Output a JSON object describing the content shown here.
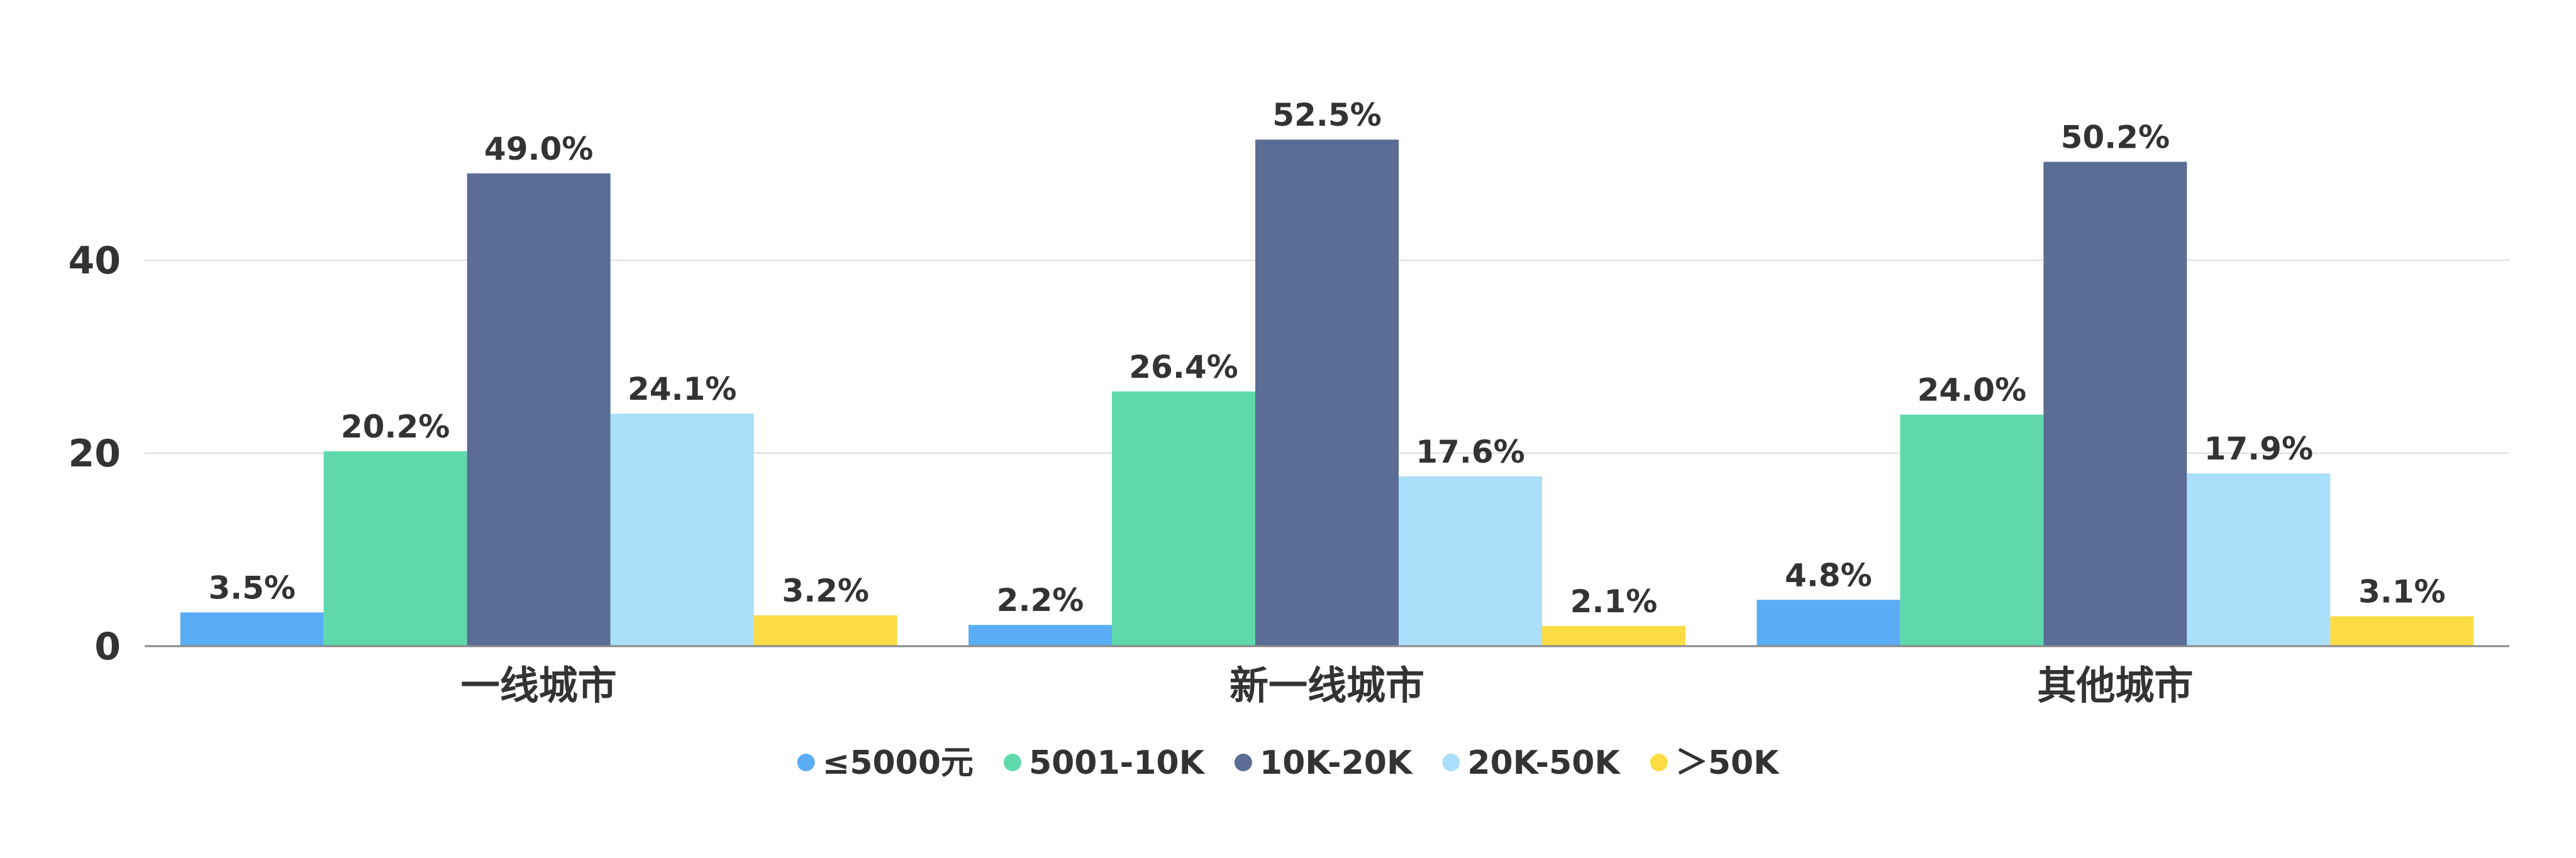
{
  "chart_data": {
    "type": "bar",
    "categories": [
      "一线城市",
      "新一线城市",
      "其他城市"
    ],
    "series": [
      {
        "name": "≤5000元",
        "color": "#5AADF5",
        "values": [
          3.5,
          2.2,
          4.8
        ],
        "labels": [
          "3.5%",
          "2.2%",
          "4.8%"
        ]
      },
      {
        "name": "5001-10K",
        "color": "#5FD9AB",
        "values": [
          20.2,
          26.4,
          24.0
        ],
        "labels": [
          "20.2%",
          "26.4%",
          "24.0%"
        ]
      },
      {
        "name": "10K-20K",
        "color": "#5B6D94",
        "values": [
          49.0,
          52.5,
          50.2
        ],
        "labels": [
          "49.0%",
          "52.5%",
          "50.2%"
        ]
      },
      {
        "name": "20K-50K",
        "color": "#A9DFF9",
        "values": [
          24.1,
          17.6,
          17.9
        ],
        "labels": [
          "24.1%",
          "17.6%",
          "17.9%"
        ]
      },
      {
        "name": "＞50K",
        "color": "#FCDC45",
        "values": [
          3.2,
          2.1,
          3.1
        ],
        "labels": [
          "3.2%",
          "2.1%",
          "3.1%"
        ]
      }
    ],
    "yticks": [
      "0",
      "20",
      "40"
    ],
    "ylim": [
      0,
      60
    ],
    "grid": true,
    "legend_position": "bottom"
  }
}
